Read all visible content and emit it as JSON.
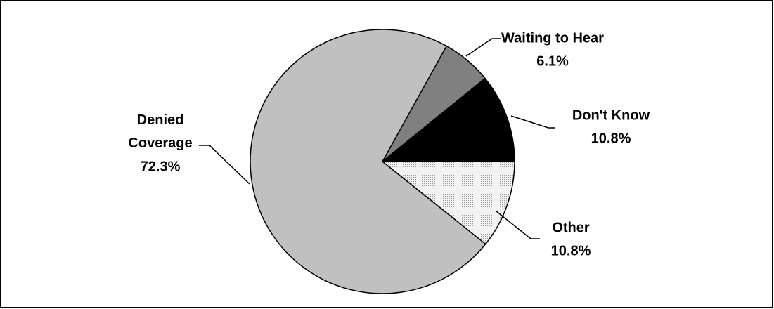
{
  "chart_data": {
    "type": "pie",
    "categories": [
      "Waiting to Hear",
      "Don't Know",
      "Other",
      "Denied Coverage"
    ],
    "values": [
      6.1,
      10.8,
      10.8,
      72.3
    ],
    "value_labels": [
      "6.1%",
      "10.8%",
      "10.8%",
      "72.3%"
    ],
    "colors": [
      "#808080",
      "#000000",
      "#e4e4e4",
      "#c0c0c0"
    ]
  }
}
